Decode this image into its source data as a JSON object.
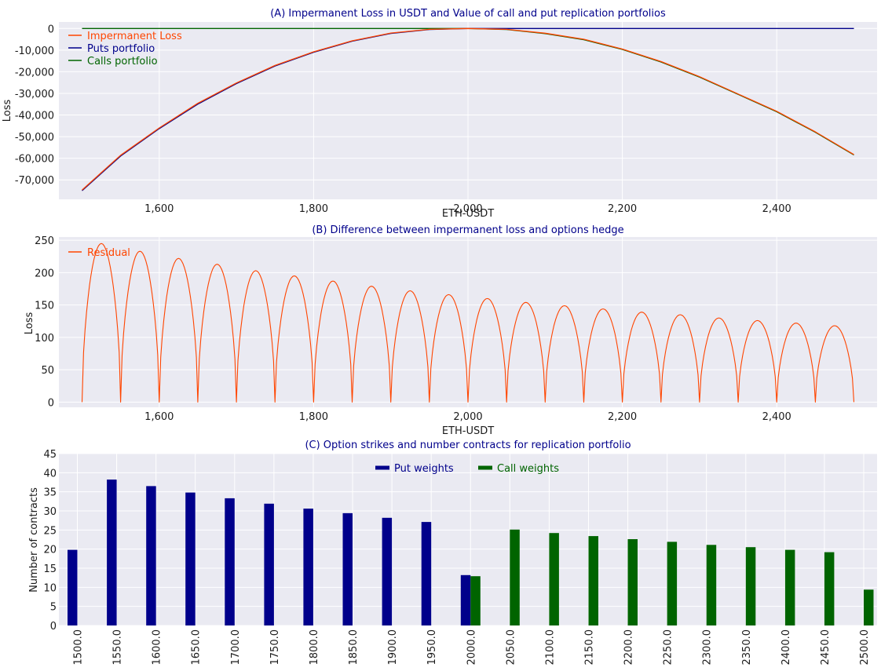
{
  "colors": {
    "background": "#eaeaf2",
    "grid": "#ffffff",
    "title": "#00008b",
    "tick": "#1a1a1a",
    "loss": "#ff4500",
    "puts": "#00008b",
    "calls": "#006400"
  },
  "chart_data": [
    {
      "type": "line",
      "title": "(A) Impermanent Loss in USDT and Value of call and put replication portfolios",
      "xlabel": "ETH-USDT",
      "ylabel": "Loss",
      "xlim": [
        1470,
        2530
      ],
      "ylim": [
        -79000,
        3000
      ],
      "xticks": [
        1600,
        1800,
        2000,
        2200,
        2400
      ],
      "xtick_labels": [
        "1,600",
        "1,800",
        "2,000",
        "2,200",
        "2,400"
      ],
      "yticks": [
        0,
        -10000,
        -20000,
        -30000,
        -40000,
        -50000,
        -60000,
        -70000
      ],
      "ytick_labels": [
        "0",
        "-10,000",
        "-20,000",
        "-30,000",
        "-40,000",
        "-50,000",
        "-60,000",
        "-70,000"
      ],
      "legend_position": "top-left",
      "x": [
        1500,
        1550,
        1600,
        1650,
        1700,
        1750,
        1800,
        1850,
        1900,
        1950,
        2000,
        2050,
        2100,
        2150,
        2200,
        2250,
        2300,
        2350,
        2400,
        2450,
        2500
      ],
      "series": [
        {
          "name": "Impermanent Loss",
          "color": "#ff4500",
          "values": [
            -74700,
            -58600,
            -46000,
            -34600,
            -25200,
            -17100,
            -10800,
            -5700,
            -2100,
            -400,
            0,
            -400,
            -2200,
            -5000,
            -9500,
            -15300,
            -22300,
            -30300,
            -38300,
            -47800,
            -58300
          ]
        },
        {
          "name": "Puts portfolio",
          "color": "#00008b",
          "values": [
            -75000,
            -59000,
            -46300,
            -35000,
            -25500,
            -17400,
            -11000,
            -5900,
            -2300,
            -500,
            0,
            0,
            0,
            0,
            0,
            0,
            0,
            0,
            0,
            0,
            0
          ]
        },
        {
          "name": "Calls portfolio",
          "color": "#006400",
          "values": [
            0,
            0,
            0,
            0,
            0,
            0,
            0,
            0,
            0,
            0,
            0,
            -500,
            -2400,
            -5200,
            -9700,
            -15500,
            -22500,
            -30500,
            -38500,
            -48000,
            -58500
          ]
        }
      ]
    },
    {
      "type": "line",
      "title": "(B) Difference between impermanent loss and options hedge",
      "xlabel": "ETH-USDT",
      "ylabel": "Loss",
      "xlim": [
        1470,
        2530
      ],
      "ylim": [
        -8,
        255
      ],
      "xticks": [
        1600,
        1800,
        2000,
        2200,
        2400
      ],
      "xtick_labels": [
        "1,600",
        "1,800",
        "2,000",
        "2,200",
        "2,400"
      ],
      "yticks": [
        0,
        50,
        100,
        150,
        200,
        250
      ],
      "ytick_labels": [
        "0",
        "50",
        "100",
        "150",
        "200",
        "250"
      ],
      "legend_position": "top-left",
      "series": [
        {
          "name": "Residual",
          "color": "#ff4500",
          "segment_width": 50,
          "x_start": 1500,
          "peaks": [
            245,
            233,
            222,
            213,
            203,
            195,
            187,
            179,
            172,
            166,
            160,
            154,
            149,
            144,
            139,
            135,
            130,
            126,
            122,
            118
          ]
        }
      ]
    },
    {
      "type": "bar",
      "title": "(C) Option strikes and number contracts for replication portfolio",
      "xlabel": "",
      "ylabel": "Number of contracts",
      "ylim": [
        0,
        45
      ],
      "yticks": [
        0,
        5,
        10,
        15,
        20,
        25,
        30,
        35,
        40,
        45
      ],
      "ytick_labels": [
        "0",
        "5",
        "10",
        "15",
        "20",
        "25",
        "30",
        "35",
        "40",
        "45"
      ],
      "legend_position": "top-center",
      "categories": [
        "1500.0",
        "1550.0",
        "1600.0",
        "1650.0",
        "1700.0",
        "1750.0",
        "1800.0",
        "1850.0",
        "1900.0",
        "1950.0",
        "2000.0",
        "2050.0",
        "2100.0",
        "2150.0",
        "2200.0",
        "2250.0",
        "2300.0",
        "2350.0",
        "2400.0",
        "2450.0",
        "2500.0"
      ],
      "series": [
        {
          "name": "Put weights",
          "color": "#00008b",
          "values": [
            19.8,
            38.2,
            36.5,
            34.8,
            33.3,
            31.9,
            30.6,
            29.4,
            28.2,
            27.1,
            13.2,
            0,
            0,
            0,
            0,
            0,
            0,
            0,
            0,
            0,
            0
          ]
        },
        {
          "name": "Call weights",
          "color": "#006400",
          "values": [
            0,
            0,
            0,
            0,
            0,
            0,
            0,
            0,
            0,
            0,
            12.9,
            25.1,
            24.2,
            23.4,
            22.6,
            21.9,
            21.1,
            20.5,
            19.8,
            19.2,
            9.4
          ]
        }
      ]
    }
  ]
}
